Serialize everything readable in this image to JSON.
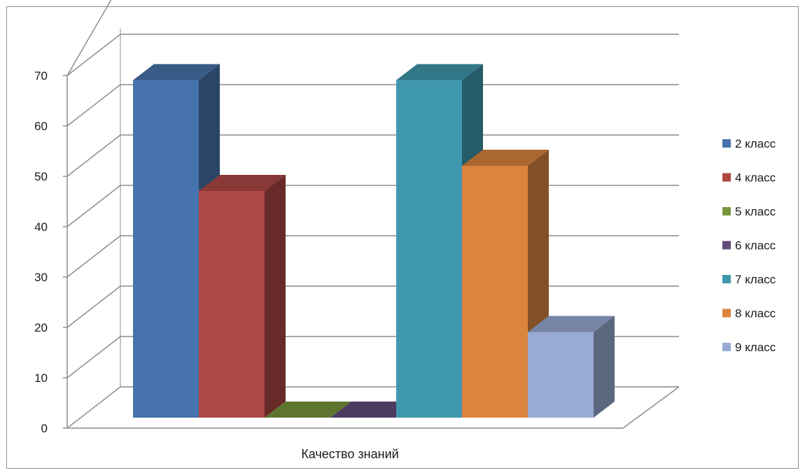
{
  "chart_data": {
    "type": "bar",
    "style": "3d-clustered-column",
    "categories": [
      "Качество знаний"
    ],
    "series": [
      {
        "name": "2 класс",
        "values": [
          67
        ],
        "color": "#4673AC"
      },
      {
        "name": "4 класс",
        "values": [
          45
        ],
        "color": "#AE4845"
      },
      {
        "name": "5 класс",
        "values": [
          0
        ],
        "color": "#78963E"
      },
      {
        "name": "6 класс",
        "values": [
          0
        ],
        "color": "#624C7C"
      },
      {
        "name": "7 класс",
        "values": [
          67
        ],
        "color": "#4098AE"
      },
      {
        "name": "8 класс",
        "values": [
          50
        ],
        "color": "#DB843D"
      },
      {
        "name": "9 класс",
        "values": [
          17
        ],
        "color": "#97ABD3"
      }
    ],
    "y_ticks": [
      "0",
      "10",
      "20",
      "30",
      "40",
      "50",
      "60",
      "70"
    ],
    "ylim": [
      0,
      70
    ],
    "grid": true,
    "legend_position": "right",
    "title": "",
    "xlabel": "",
    "ylabel": ""
  }
}
